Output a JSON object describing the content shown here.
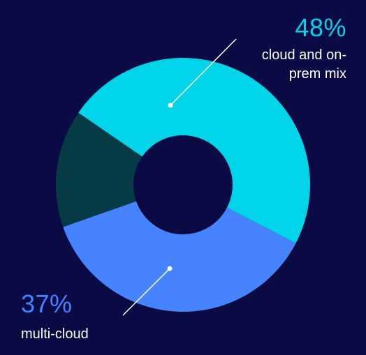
{
  "chart_data": {
    "type": "pie",
    "donut": true,
    "slices": [
      {
        "label": "cloud and on-prem mix",
        "value": 48,
        "value_label": "48%",
        "color": "#00d4e8"
      },
      {
        "label": "multi-cloud",
        "value": 37,
        "value_label": "37%",
        "color": "#4583ff"
      },
      {
        "label": "",
        "value": 15,
        "color": "#063a44"
      }
    ]
  },
  "colors": {
    "background": "#0a0a44",
    "cloud_and_onprem_text": "#00d4e8",
    "multi_cloud_text": "#4583ff",
    "leader_line": "#ffffff"
  }
}
